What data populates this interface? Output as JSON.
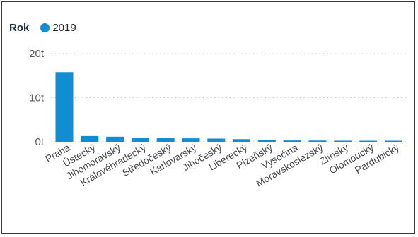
{
  "chart_data": {
    "type": "bar",
    "legend": {
      "title": "Rok",
      "placement": "top-left"
    },
    "categories": [
      "Praha",
      "Ústecký",
      "Jihomoravský",
      "Královéhradecký",
      "Středočeský",
      "Karlovarský",
      "Jihočeský",
      "Liberecký",
      "Plzeňský",
      "Vysočina",
      "Moravskoslezský",
      "Zlínský",
      "Olomoucký",
      "Pardubický"
    ],
    "series": [
      {
        "name": "2019",
        "color": "#118dd2",
        "values": [
          15800,
          1300,
          1150,
          900,
          850,
          780,
          720,
          600,
          350,
          300,
          280,
          250,
          220,
          200
        ]
      }
    ],
    "y_ticks": [
      {
        "value": 0,
        "label": "0t"
      },
      {
        "value": 10000,
        "label": "10t"
      },
      {
        "value": 20000,
        "label": "20t"
      }
    ],
    "ylim": [
      0,
      20000
    ],
    "grid": true,
    "title": "",
    "xlabel": "",
    "ylabel": ""
  }
}
